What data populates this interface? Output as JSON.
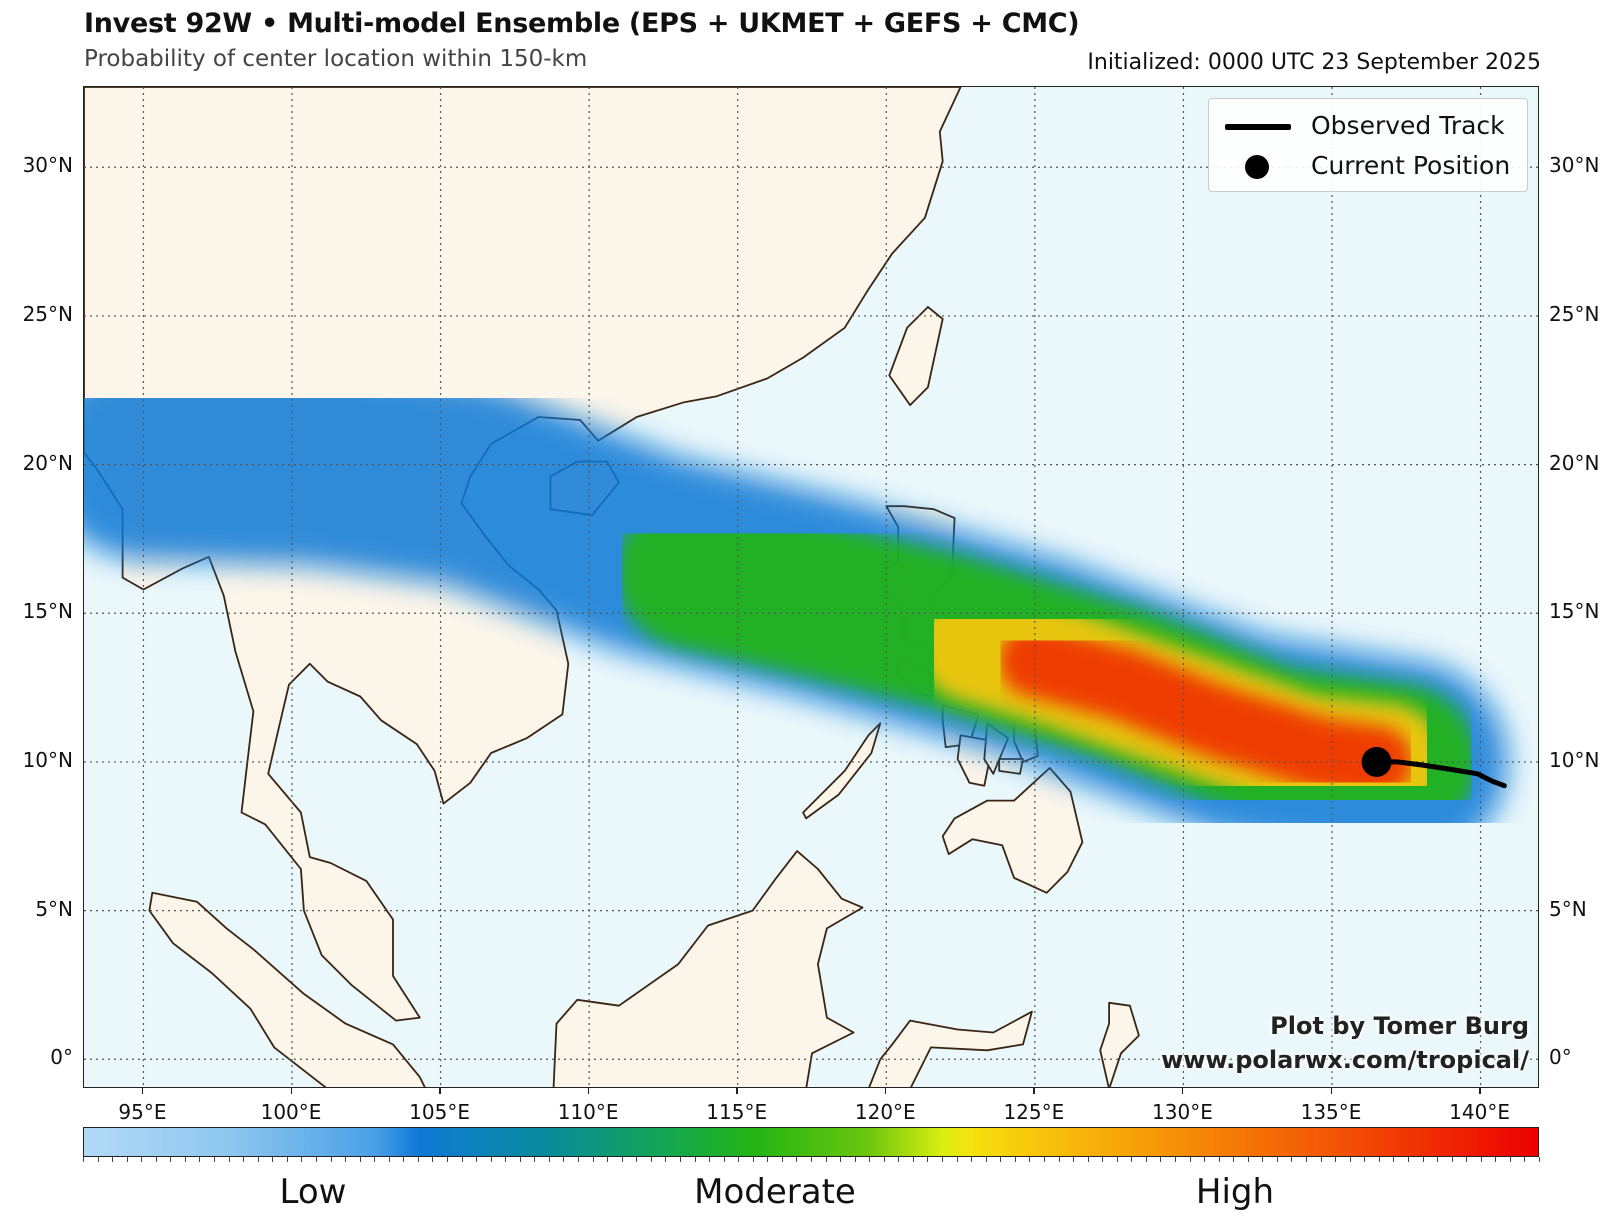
{
  "header": {
    "title": "Invest 92W • Multi-model Ensemble (EPS + UKMET + GEFS + CMC)",
    "subtitle": "Probability of center location within 150-km",
    "initialized": "Initialized: 0000 UTC 23 September 2025"
  },
  "map": {
    "extent": {
      "lon": [
        93.0,
        142.0
      ],
      "lat": [
        -1.0,
        32.7
      ]
    },
    "lon_ticks": [
      {
        "value": 95,
        "label": "95°E"
      },
      {
        "value": 100,
        "label": "100°E"
      },
      {
        "value": 105,
        "label": "105°E"
      },
      {
        "value": 110,
        "label": "110°E"
      },
      {
        "value": 115,
        "label": "115°E"
      },
      {
        "value": 120,
        "label": "120°E"
      },
      {
        "value": 125,
        "label": "125°E"
      },
      {
        "value": 130,
        "label": "130°E"
      },
      {
        "value": 135,
        "label": "135°E"
      },
      {
        "value": 140,
        "label": "140°E"
      }
    ],
    "lat_ticks": [
      {
        "value": 0,
        "label": "0°"
      },
      {
        "value": 5,
        "label": "5°N"
      },
      {
        "value": 10,
        "label": "10°N"
      },
      {
        "value": 15,
        "label": "15°N"
      },
      {
        "value": 20,
        "label": "20°N"
      },
      {
        "value": 25,
        "label": "25°N"
      },
      {
        "value": 30,
        "label": "30°N"
      }
    ],
    "ocean_color": "#eaf7fb",
    "land_color": "#fbf5ea",
    "coast_color": "#3a2412",
    "grid": true,
    "observed_track": [
      [
        140.8,
        9.2
      ],
      [
        140.4,
        9.35
      ],
      [
        139.9,
        9.6
      ],
      [
        139.0,
        9.75
      ],
      [
        138.0,
        9.9
      ],
      [
        137.2,
        10.0
      ],
      [
        136.5,
        10.0
      ]
    ],
    "current_position": [
      136.5,
      10.0
    ],
    "probability_swath": [
      {
        "level": "high",
        "color": "#f03004",
        "center_line": [
          [
            136.5,
            10.0
          ],
          [
            134.5,
            10.3
          ],
          [
            131.0,
            11.4
          ],
          [
            128.0,
            12.6
          ],
          [
            125.0,
            13.4
          ]
        ],
        "half_width_deg": 1.2
      },
      {
        "level": "moderate-high",
        "color": "#f8c70c",
        "center_line": [
          [
            136.8,
            10.0
          ],
          [
            134.0,
            10.3
          ],
          [
            130.0,
            11.7
          ],
          [
            126.0,
            13.1
          ],
          [
            123.0,
            14.0
          ]
        ],
        "half_width_deg": 2.0
      },
      {
        "level": "moderate",
        "color": "#22b414",
        "center_line": [
          [
            137.3,
            10.0
          ],
          [
            133.0,
            10.6
          ],
          [
            128.0,
            12.6
          ],
          [
            122.0,
            14.4
          ],
          [
            117.0,
            15.6
          ],
          [
            113.5,
            16.4
          ]
        ],
        "half_width_deg": 2.6
      },
      {
        "level": "low",
        "color": "#0f79d6",
        "center_line": [
          [
            137.5,
            10.0
          ],
          [
            132.0,
            10.9
          ],
          [
            125.0,
            13.5
          ],
          [
            118.0,
            15.5
          ],
          [
            112.0,
            17.0
          ],
          [
            106.0,
            19.3
          ],
          [
            101.0,
            20.0
          ],
          [
            95.0,
            20.2
          ]
        ],
        "half_width_deg": 3.4
      }
    ]
  },
  "legend": {
    "items": [
      {
        "label": "Observed Track",
        "symbol": "line",
        "color": "#000000"
      },
      {
        "label": "Current Position",
        "symbol": "dot",
        "color": "#000000"
      }
    ]
  },
  "credit": {
    "line1": "Plot by Tomer Burg",
    "line2": "www.polarwx.com/tropical/"
  },
  "colorbar": {
    "labels": [
      "Low",
      "Moderate",
      "High"
    ],
    "colors": [
      "#b3daf5",
      "#0f79d6",
      "#22b414",
      "#f5e20f",
      "#f67f06",
      "#ec0000"
    ]
  }
}
